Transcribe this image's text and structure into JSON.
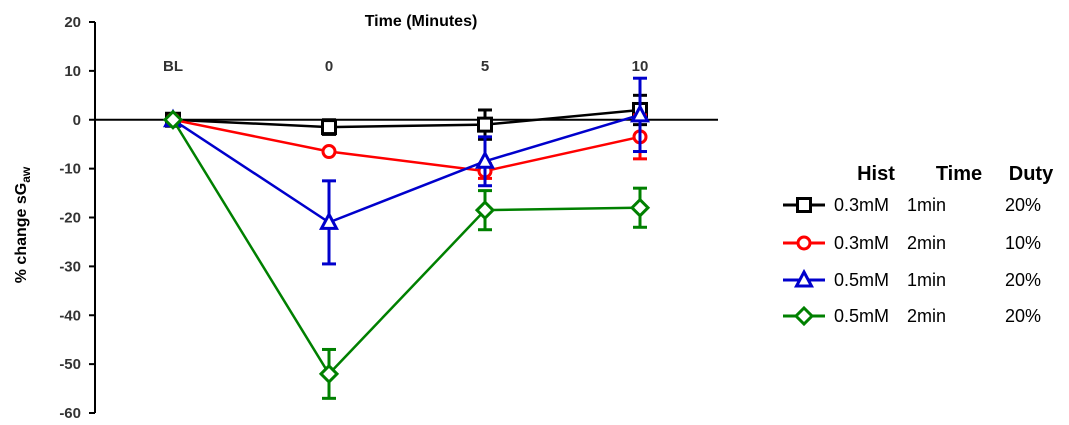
{
  "chart_data": {
    "type": "line",
    "xlabel": "Time (Minutes)",
    "ylabel": "% change sG",
    "ylabel_sub": "aw",
    "categories": [
      "BL",
      "0",
      "5",
      "10"
    ],
    "ylim": [
      -60,
      20
    ],
    "yticks": [
      20,
      10,
      0,
      -10,
      -20,
      -30,
      -40,
      -50,
      -60
    ],
    "grid": false,
    "legend_position": "right",
    "legend_headers": [
      "Hist",
      "Time",
      "Duty"
    ],
    "series": [
      {
        "marker": "square",
        "color": "#000000",
        "hist": "0.3mM",
        "time": "1min",
        "duty": "20%",
        "values": [
          0,
          -1.5,
          -1,
          2
        ],
        "err": [
          0,
          1.5,
          3,
          3
        ]
      },
      {
        "marker": "circle",
        "color": "#ff0000",
        "hist": "0.3mM",
        "time": "2min",
        "duty": "10%",
        "values": [
          0,
          -6.5,
          -10.5,
          -3.5
        ],
        "err": [
          0,
          0,
          1.5,
          4.5
        ]
      },
      {
        "marker": "triangle",
        "color": "#0000cc",
        "hist": "0.5mM",
        "time": "1min",
        "duty": "20%",
        "values": [
          0,
          -21,
          -8.5,
          1
        ],
        "err": [
          0,
          8.5,
          5,
          7.5
        ]
      },
      {
        "marker": "diamond",
        "color": "#008000",
        "hist": "0.5mM",
        "time": "2min",
        "duty": "20%",
        "values": [
          0,
          -52,
          -18.5,
          -18
        ],
        "err": [
          0,
          5,
          4,
          4
        ]
      }
    ]
  }
}
